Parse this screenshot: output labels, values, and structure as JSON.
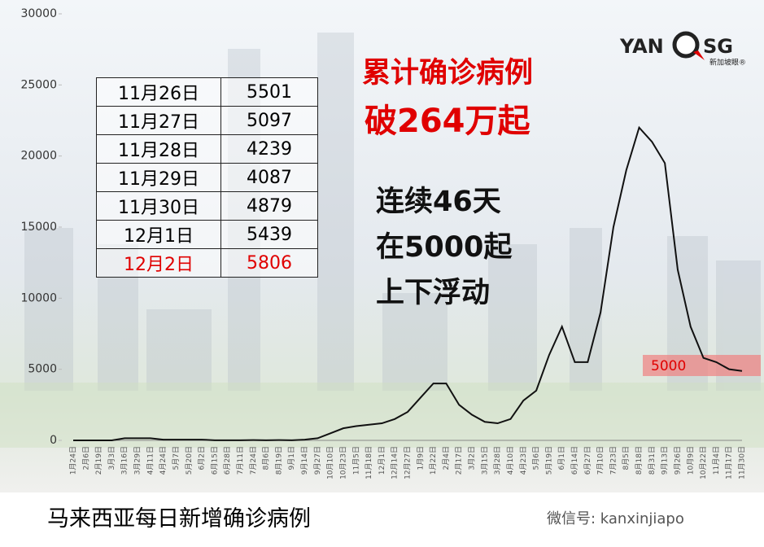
{
  "chart_data": {
    "type": "line",
    "title": "马来西亚每日新增确诊病例",
    "headline": [
      "累计确诊病例",
      "破264万起"
    ],
    "notes": [
      "连续46天",
      "在5000起",
      "上下浮动"
    ],
    "band_label": "5000",
    "categories": [
      "1月24日",
      "2月6日",
      "2月19日",
      "3月3日",
      "3月16日",
      "3月29日",
      "4月11日",
      "4月24日",
      "5月7日",
      "5月20日",
      "6月2日",
      "6月15日",
      "6月28日",
      "7月11日",
      "7月24日",
      "8月6日",
      "8月19日",
      "9月1日",
      "9月14日",
      "9月27日",
      "10月10日",
      "10月23日",
      "11月5日",
      "11月18日",
      "12月1日",
      "12月14日",
      "12月27日",
      "1月9日",
      "1月22日",
      "2月4日",
      "2月17日",
      "3月2日",
      "3月15日",
      "3月28日",
      "4月10日",
      "4月23日",
      "5月6日",
      "5月19日",
      "6月1日",
      "6月14日",
      "6月27日",
      "7月10日",
      "7月23日",
      "8月5日",
      "8月18日",
      "8月31日",
      "9月13日",
      "9月26日",
      "10月9日",
      "10月22日",
      "11月4日",
      "11月17日",
      "11月30日"
    ],
    "series": [
      {
        "name": "每日新增",
        "color": "#111111",
        "values": [
          0,
          0,
          0,
          0,
          150,
          150,
          150,
          50,
          50,
          50,
          50,
          10,
          5,
          10,
          20,
          10,
          20,
          10,
          50,
          150,
          500,
          850,
          1000,
          1100,
          1200,
          1500,
          2000,
          3000,
          4000,
          4000,
          2500,
          1800,
          1300,
          1200,
          1500,
          2800,
          3500,
          6000,
          8000,
          5500,
          5500,
          9000,
          15000,
          19000,
          22000,
          21000,
          19500,
          12000,
          8000,
          5800,
          5500,
          5000,
          4879
        ]
      }
    ],
    "ylim": [
      0,
      30000
    ],
    "yticks": [
      0,
      5000,
      10000,
      15000,
      20000,
      25000,
      30000
    ]
  },
  "table": {
    "rows": [
      [
        "11月26日",
        5501
      ],
      [
        "11月27日",
        5097
      ],
      [
        "11月28日",
        4239
      ],
      [
        "11月29日",
        4087
      ],
      [
        "11月30日",
        4879
      ],
      [
        "12月1日",
        5439
      ],
      [
        "12月2日",
        5806
      ]
    ]
  },
  "logo": {
    "left": "YAN",
    "right": "SG",
    "sub": "新加坡眼®"
  },
  "watermark": "微信号: kanxinjiapo"
}
